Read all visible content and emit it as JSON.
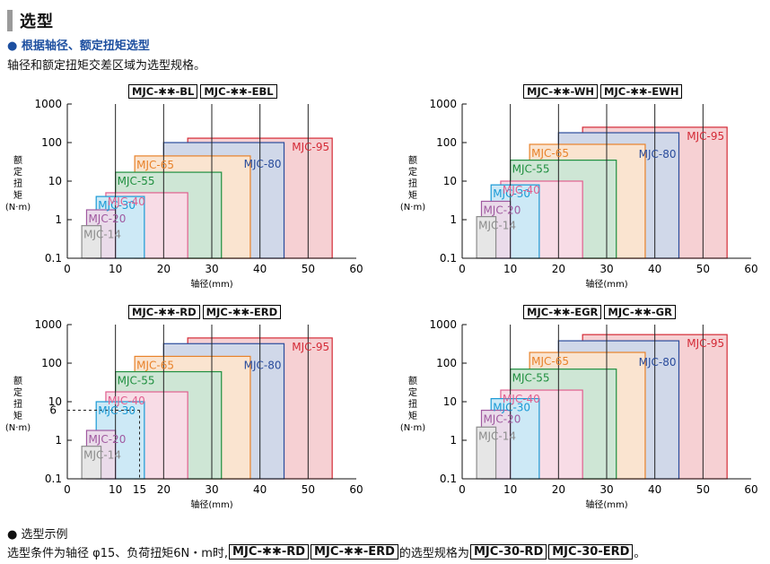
{
  "header": {
    "title": "选型",
    "subtitle": "● 根据轴径、额定扭矩选型",
    "description": "轴径和额定扭矩交差区域为选型规格。"
  },
  "charts_common": {
    "y_label_lines": [
      "额",
      "定",
      "扭",
      "矩",
      "(N·m)"
    ],
    "x_label": "轴径(mm)",
    "x_ticks": [
      0,
      10,
      20,
      30,
      40,
      50,
      60
    ],
    "y_ticks": [
      "0.1",
      "1",
      "10",
      "100",
      "1000"
    ]
  },
  "example": {
    "heading": "● 选型示例",
    "text_a": "选型条件为轴径 φ15、负荷扭矩6N・m时, ",
    "box1": "MJC-✱✱-RD",
    "box2": "MJC-✱✱-ERD",
    "text_b": "的选型规格为",
    "box3": "MJC-30-RD",
    "box4": "MJC-30-ERD",
    "text_c": "。"
  },
  "chart_data": [
    {
      "type": "area",
      "labels": [
        "MJC-✱✱-BL",
        "MJC-✱✱-EBL"
      ],
      "xlim": [
        0,
        60
      ],
      "ylim": [
        0.1,
        1000
      ],
      "y_scale": "log",
      "series": [
        {
          "name": "MJC-14",
          "x_max": 7,
          "torque_max": 0.7,
          "color": "#8c8c8c"
        },
        {
          "name": "MJC-20",
          "x_max": 10,
          "torque_max": 1.8,
          "color": "#a05aa0"
        },
        {
          "name": "MJC-30",
          "x_max": 16,
          "torque_max": 4,
          "color": "#1a9ad6"
        },
        {
          "name": "MJC-40",
          "x_max": 25,
          "torque_max": 5,
          "color": "#e0608f"
        },
        {
          "name": "MJC-55",
          "x_max": 32,
          "torque_max": 17,
          "color": "#1f8f3f"
        },
        {
          "name": "MJC-65",
          "x_max": 38,
          "torque_max": 45,
          "color": "#e8822a"
        },
        {
          "name": "MJC-80",
          "x_max": 45,
          "torque_max": 100,
          "color": "#2a4c9c"
        },
        {
          "name": "MJC-95",
          "x_max": 55,
          "torque_max": 130,
          "color": "#d42a36"
        }
      ]
    },
    {
      "type": "area",
      "labels": [
        "MJC-✱✱-WH",
        "MJC-✱✱-EWH"
      ],
      "xlim": [
        0,
        60
      ],
      "ylim": [
        0.1,
        1000
      ],
      "y_scale": "log",
      "series": [
        {
          "name": "MJC-14",
          "x_max": 7,
          "torque_max": 1.2,
          "color": "#8c8c8c"
        },
        {
          "name": "MJC-20",
          "x_max": 10,
          "torque_max": 3,
          "color": "#a05aa0"
        },
        {
          "name": "MJC-30",
          "x_max": 16,
          "torque_max": 8,
          "color": "#1a9ad6"
        },
        {
          "name": "MJC-40",
          "x_max": 25,
          "torque_max": 10,
          "color": "#e0608f"
        },
        {
          "name": "MJC-55",
          "x_max": 32,
          "torque_max": 35,
          "color": "#1f8f3f"
        },
        {
          "name": "MJC-65",
          "x_max": 38,
          "torque_max": 90,
          "color": "#e8822a"
        },
        {
          "name": "MJC-80",
          "x_max": 45,
          "torque_max": 180,
          "color": "#2a4c9c"
        },
        {
          "name": "MJC-95",
          "x_max": 55,
          "torque_max": 250,
          "color": "#d42a36"
        }
      ]
    },
    {
      "type": "area",
      "labels": [
        "MJC-✱✱-RD",
        "MJC-✱✱-ERD"
      ],
      "xlim": [
        0,
        60
      ],
      "ylim": [
        0.1,
        1000
      ],
      "y_scale": "log",
      "extra_y_tick": "6",
      "example_point": {
        "x": 15,
        "y": 6
      },
      "series": [
        {
          "name": "MJC-14",
          "x_max": 7,
          "torque_max": 0.7,
          "color": "#8c8c8c"
        },
        {
          "name": "MJC-20",
          "x_max": 10,
          "torque_max": 1.8,
          "color": "#a05aa0"
        },
        {
          "name": "MJC-30",
          "x_max": 16,
          "torque_max": 10,
          "color": "#1a9ad6"
        },
        {
          "name": "MJC-40",
          "x_max": 25,
          "torque_max": 18,
          "color": "#e0608f"
        },
        {
          "name": "MJC-55",
          "x_max": 32,
          "torque_max": 60,
          "color": "#1f8f3f"
        },
        {
          "name": "MJC-65",
          "x_max": 38,
          "torque_max": 150,
          "color": "#e8822a"
        },
        {
          "name": "MJC-80",
          "x_max": 45,
          "torque_max": 320,
          "color": "#2a4c9c"
        },
        {
          "name": "MJC-95",
          "x_max": 55,
          "torque_max": 450,
          "color": "#d42a36"
        }
      ]
    },
    {
      "type": "area",
      "labels": [
        "MJC-✱✱-EGR",
        "MJC-✱✱-GR"
      ],
      "xlim": [
        0,
        60
      ],
      "ylim": [
        0.1,
        1000
      ],
      "y_scale": "log",
      "series": [
        {
          "name": "MJC-14",
          "x_max": 7,
          "torque_max": 2.2,
          "color": "#8c8c8c"
        },
        {
          "name": "MJC-20",
          "x_max": 10,
          "torque_max": 6,
          "color": "#a05aa0"
        },
        {
          "name": "MJC-30",
          "x_max": 16,
          "torque_max": 12,
          "color": "#1a9ad6"
        },
        {
          "name": "MJC-40",
          "x_max": 25,
          "torque_max": 20,
          "color": "#e0608f"
        },
        {
          "name": "MJC-55",
          "x_max": 32,
          "torque_max": 70,
          "color": "#1f8f3f"
        },
        {
          "name": "MJC-65",
          "x_max": 38,
          "torque_max": 190,
          "color": "#e8822a"
        },
        {
          "name": "MJC-80",
          "x_max": 45,
          "torque_max": 380,
          "color": "#2a4c9c"
        },
        {
          "name": "MJC-95",
          "x_max": 55,
          "torque_max": 550,
          "color": "#d42a36"
        }
      ]
    }
  ]
}
